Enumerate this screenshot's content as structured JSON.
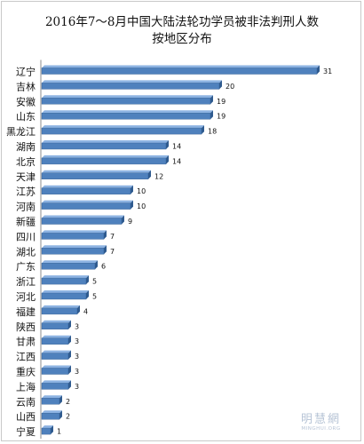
{
  "chart_data": {
    "type": "bar",
    "orientation": "horizontal",
    "title_line1": "2016年7～8月中国大陆法轮功学员被非法判刑人数",
    "title_line2": "按地区分布",
    "categories": [
      "辽宁",
      "吉林",
      "安徽",
      "山东",
      "黑龙江",
      "湖南",
      "北京",
      "天津",
      "江苏",
      "河南",
      "新疆",
      "四川",
      "湖北",
      "广东",
      "浙江",
      "河北",
      "福建",
      "陕西",
      "甘肃",
      "江西",
      "重庆",
      "上海",
      "云南",
      "山西",
      "宁夏"
    ],
    "values": [
      31,
      20,
      19,
      19,
      18,
      14,
      14,
      12,
      10,
      10,
      9,
      7,
      7,
      6,
      5,
      5,
      4,
      3,
      3,
      3,
      3,
      3,
      2,
      2,
      1
    ],
    "xlim": [
      0,
      31
    ],
    "grid": false,
    "legend": "none",
    "bar_color": "#4f81bd",
    "bar_top_color": "#8db3e2",
    "bar_dark_color": "#2f5b8f"
  },
  "watermark": {
    "main": "明慧網",
    "sub": "MINGHUI.ORG"
  }
}
